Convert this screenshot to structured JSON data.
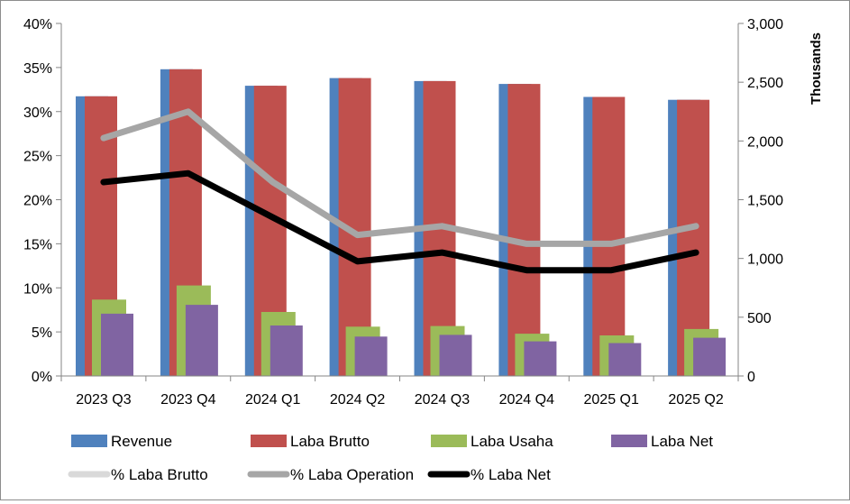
{
  "chart_data": {
    "type": "bar",
    "categories": [
      "2023 Q3",
      "2023 Q4",
      "2024 Q1",
      "2024 Q2",
      "2024 Q3",
      "2024 Q4",
      "2025 Q1",
      "2025 Q2"
    ],
    "left_axis": {
      "ylim": [
        0,
        0.4
      ],
      "ticks": [
        0,
        0.05,
        0.1,
        0.15,
        0.2,
        0.25,
        0.3,
        0.35,
        0.4
      ],
      "tick_labels": [
        "0%",
        "5%",
        "10%",
        "15%",
        "20%",
        "25%",
        "30%",
        "35%",
        "40%"
      ]
    },
    "right_axis": {
      "ylabel": "Thousands",
      "ylim": [
        0,
        3000
      ],
      "ticks": [
        0,
        500,
        1000,
        1500,
        2000,
        2500,
        3000
      ],
      "tick_labels": [
        "0",
        "500",
        "1,000",
        "1,500",
        "2,000",
        "2,500",
        "3,000"
      ]
    },
    "bar_series": [
      {
        "name": "Revenue",
        "color": "#4f81bd",
        "axis": "right",
        "values": [
          2380,
          2610,
          2470,
          2535,
          2510,
          2485,
          2375,
          2350
        ]
      },
      {
        "name": "Laba Brutto",
        "color": "#c0504d",
        "axis": "right",
        "values": [
          2380,
          2610,
          2470,
          2535,
          2510,
          2485,
          2375,
          2350
        ]
      },
      {
        "name": "Laba Usaha",
        "color": "#9bbb59",
        "axis": "right",
        "values": [
          650,
          770,
          545,
          420,
          425,
          360,
          345,
          400
        ]
      },
      {
        "name": "Laba Net",
        "color": "#8064a2",
        "axis": "right",
        "values": [
          530,
          605,
          430,
          335,
          350,
          295,
          280,
          325
        ]
      }
    ],
    "line_series": [
      {
        "name": "% Laba Brutto",
        "color": "#d9d9d9",
        "axis": "left",
        "values": []
      },
      {
        "name": "% Laba Operation",
        "color": "#a6a6a6",
        "axis": "left",
        "values": [
          0.27,
          0.3,
          0.22,
          0.16,
          0.17,
          0.15,
          0.15,
          0.17
        ]
      },
      {
        "name": "% Laba Net",
        "color": "#000000",
        "axis": "left",
        "values": [
          0.22,
          0.23,
          0.18,
          0.13,
          0.14,
          0.12,
          0.12,
          0.14
        ]
      }
    ],
    "legend": {
      "placement": "bottom",
      "rows": [
        [
          "Revenue",
          "Laba Brutto",
          "Laba Usaha",
          "Laba Net"
        ],
        [
          "% Laba Brutto",
          "% Laba Operation",
          "% Laba Net"
        ]
      ]
    },
    "grid": false
  }
}
